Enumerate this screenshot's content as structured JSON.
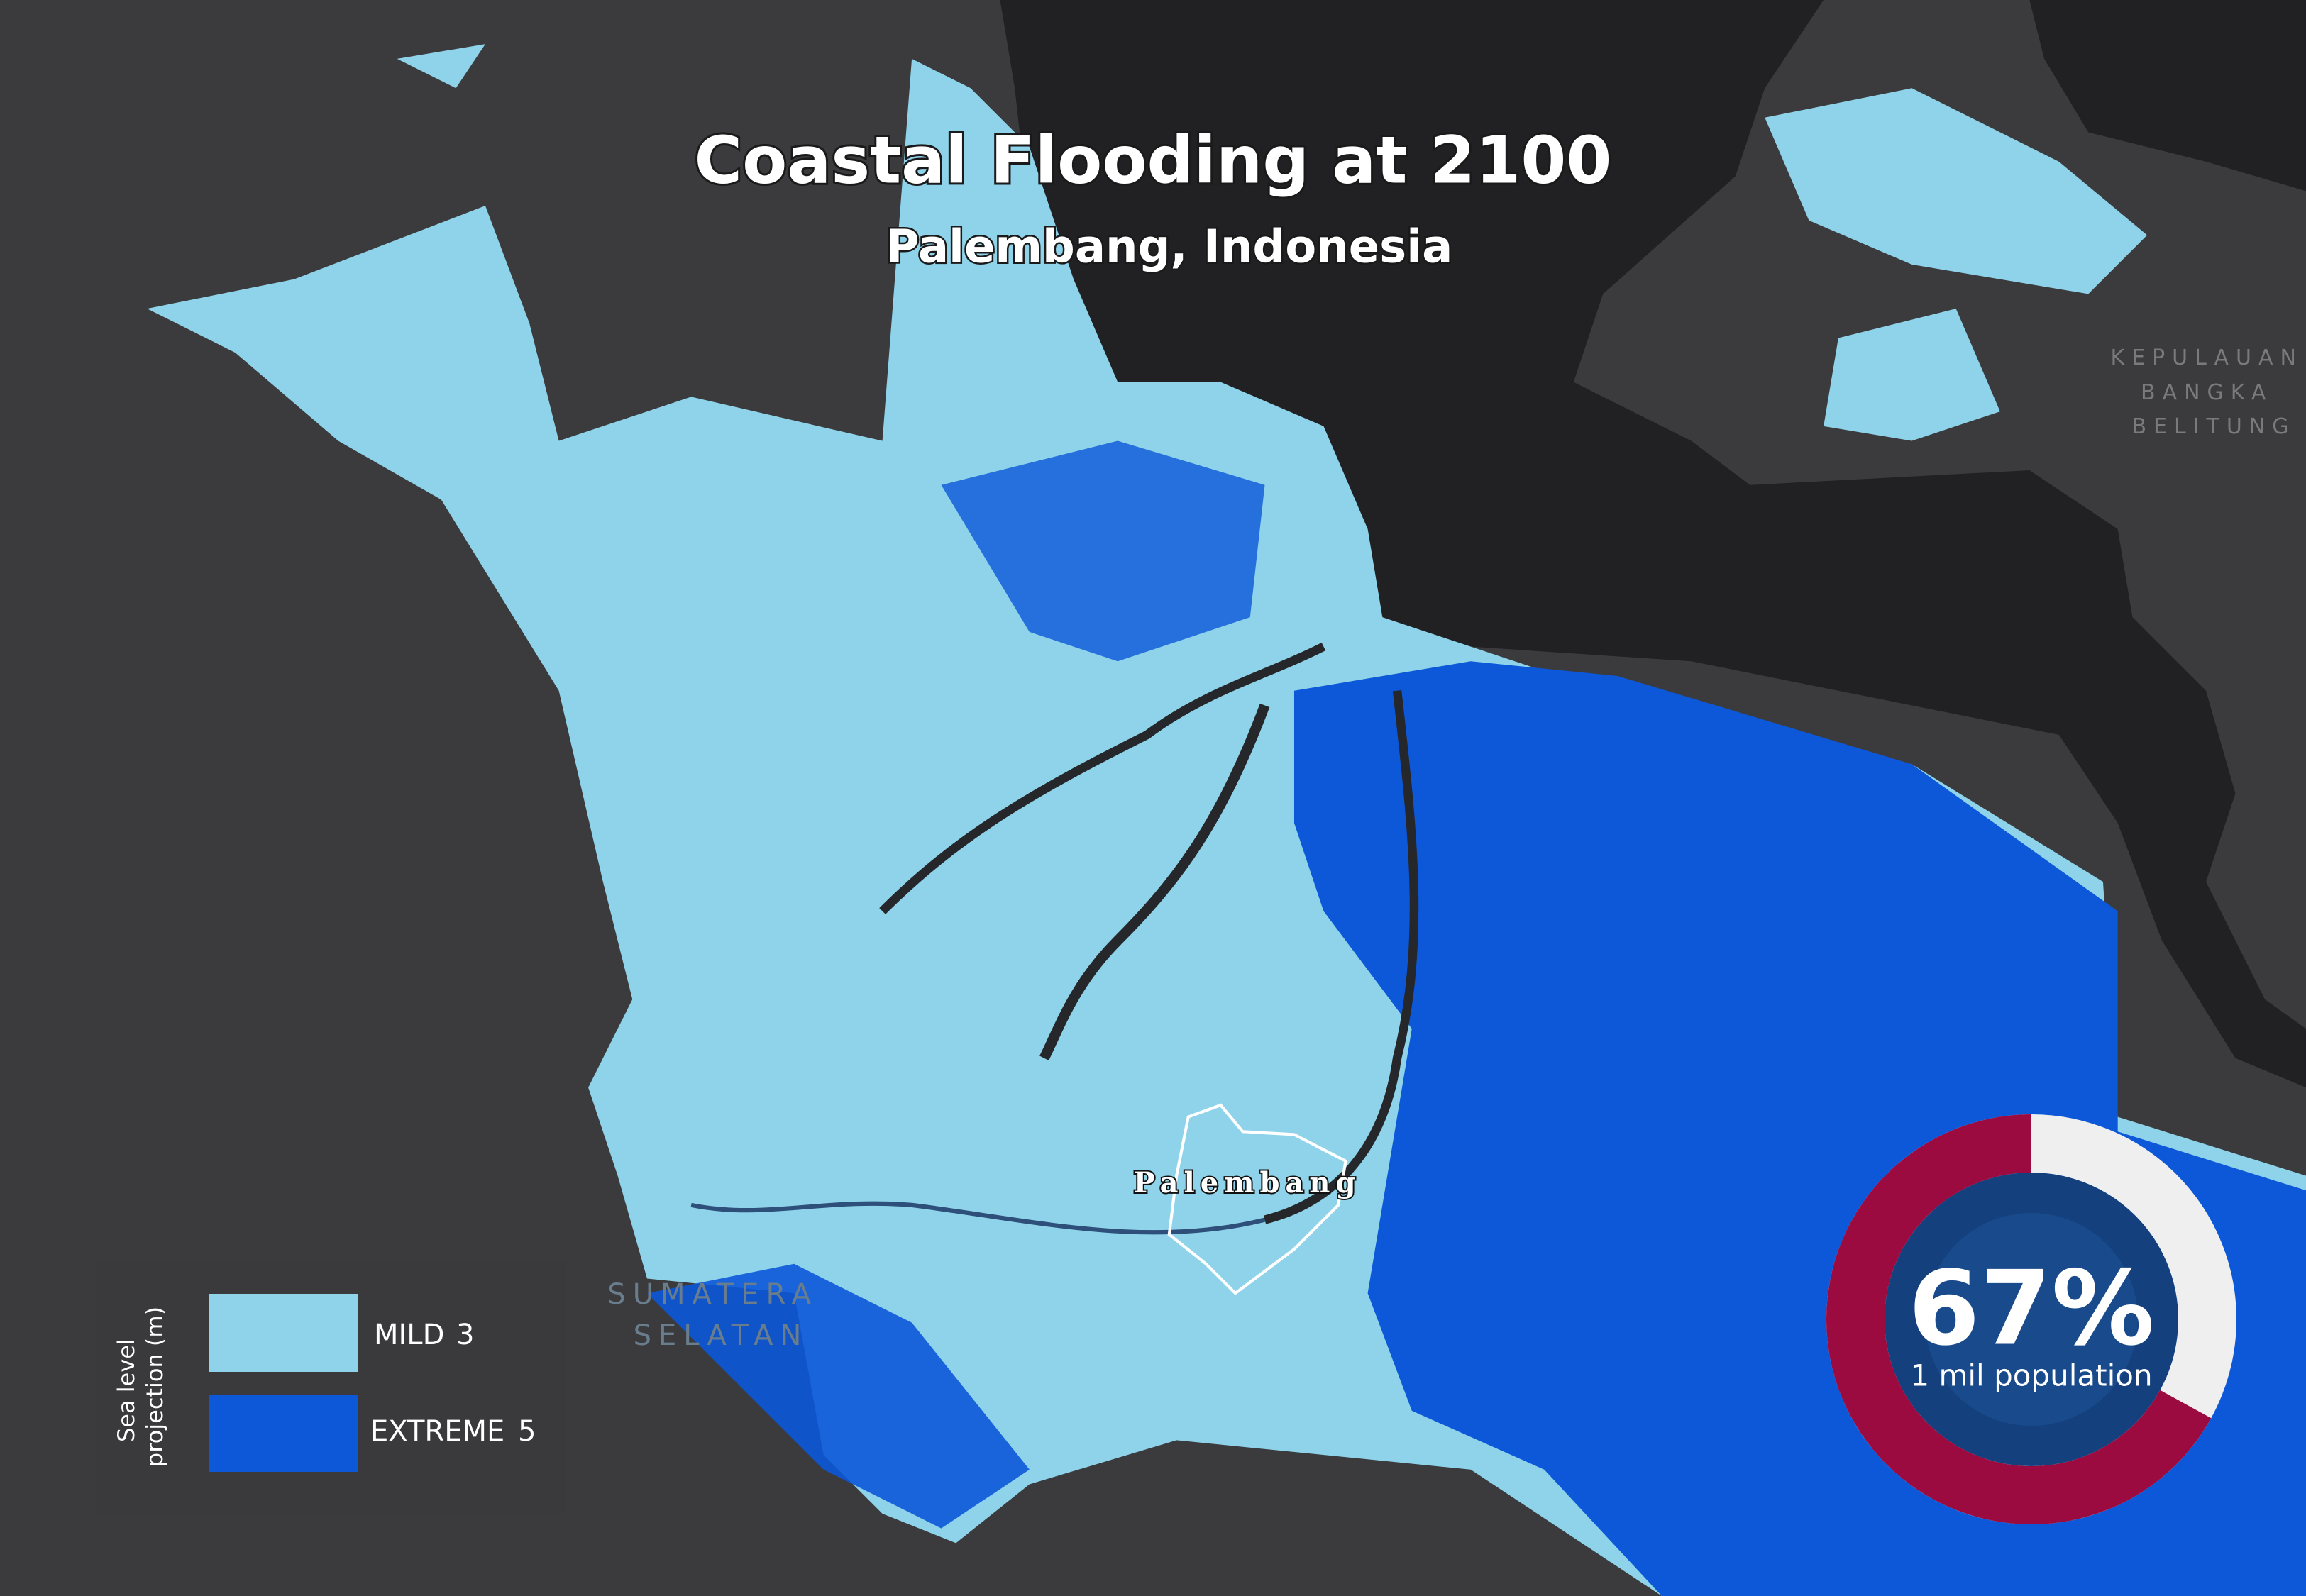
{
  "header": {
    "title": "Coastal Flooding at 2100",
    "subtitle": "Palembang, Indonesia"
  },
  "places": [
    {
      "label": "Palembang"
    },
    {
      "lines": [
        "KEPULAUAN",
        "BANGKA",
        "BELITUNG"
      ]
    },
    {
      "lines": [
        "SUMATERA",
        "SELATAN"
      ]
    }
  ],
  "legend": {
    "title": [
      "Sea level",
      "projection (m)"
    ],
    "items": [
      {
        "name": "MILD",
        "value": 3,
        "color": "#8ed3ea"
      },
      {
        "name": "EXTREME",
        "value": 5,
        "color": "#0c58d9"
      }
    ]
  },
  "donut": {
    "value": 67,
    "label": "67%",
    "caption": "1 mil population",
    "color": "#9b0b3f",
    "rest_color": "#efefef"
  }
}
